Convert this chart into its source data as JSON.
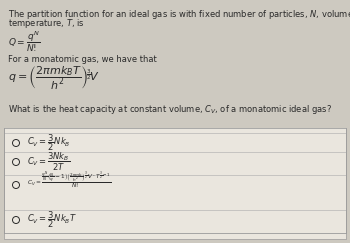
{
  "bg_color": "#cdc9c0",
  "box_color": "#e8e4dc",
  "text_color": "#2a2a2a",
  "line_color": "#aaaaaa",
  "title_text1": "The partition function for an ideal gas is with fixed number of particles, $N$, volume, $V$, and",
  "title_text2": "temperature, $T$, is",
  "Q_eq": "$Q = \\dfrac{q^N}{N!}$",
  "for_mono": "For a monatomic gas, we have that",
  "q_eq": "$q = \\left(\\dfrac{2\\pi mk_BT}{h^2}\\right)^{\\!\\frac{3}{2}}\\!V$",
  "question": "What is the heat capacity at constant volume, $C_V$, of a monatomic ideal gas?",
  "opt1": "$C_V = \\dfrac{3}{2}Nk_B$",
  "opt2": "$C_V = \\dfrac{3Nk_B}{2T}$",
  "opt3_top": "$\\dfrac{q^N}{N}\\!\\left(\\dfrac{N}{q}-1\\right)\\!\\left(\\dfrac{2\\pi mk}{h^2}\\right)^{\\!\\frac{3}{2}}\\!V \\cdot T^{\\frac{3}{2}-1}$",
  "opt3_bot": "$N!$",
  "opt4": "$C_V = \\dfrac{3}{2}Nk_BT$",
  "figsize": [
    3.5,
    2.43
  ],
  "dpi": 100
}
